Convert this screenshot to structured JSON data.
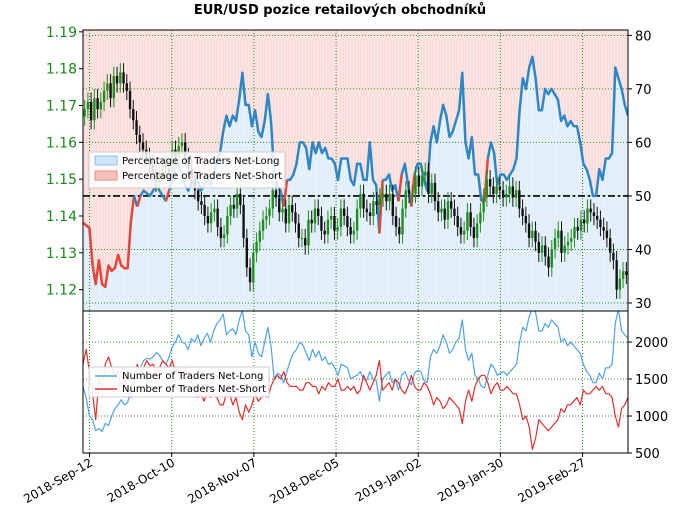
{
  "chart_data": [
    {
      "type": "candlestick+line+area",
      "title": "EUR/USD pozice retailových obchodníků",
      "left_axis": {
        "ticks": [
          "1.12",
          "1.13",
          "1.14",
          "1.15",
          "1.16",
          "1.17",
          "1.18",
          "1.19"
        ],
        "range": [
          1.1142,
          1.1905
        ]
      },
      "right_axis": {
        "ticks": [
          "30",
          "40",
          "50",
          "60",
          "70",
          "80"
        ],
        "range": [
          28.5,
          81
        ]
      },
      "reference_line_pct": 50,
      "legend": [
        "Percentage of Traders Net-Long",
        "Percentage of Traders Net-Short"
      ],
      "net_long_pct": [
        45,
        44.5,
        44,
        37,
        33.5,
        38,
        33.5,
        33,
        37,
        36,
        36.5,
        39,
        37,
        36.5,
        36.5,
        45,
        50,
        48,
        50,
        51,
        50.5,
        50,
        51,
        52,
        51,
        50,
        49,
        51,
        53,
        55,
        56,
        54,
        52,
        51,
        53,
        52,
        53,
        51,
        52,
        53,
        52,
        54,
        57,
        58,
        62,
        65,
        63,
        65,
        64,
        68,
        73,
        67,
        67,
        63,
        66,
        62,
        61,
        64,
        69,
        64,
        54,
        52,
        51,
        48,
        53,
        53,
        54,
        56,
        60,
        60,
        59,
        55,
        60,
        58,
        60,
        58,
        59,
        57,
        57,
        56,
        53,
        57,
        57,
        57,
        53,
        52,
        56,
        56,
        53,
        53,
        60,
        53,
        52,
        43,
        53,
        53,
        54,
        51,
        52,
        49,
        54,
        56,
        52,
        48,
        54,
        56,
        56,
        53,
        51,
        60,
        63,
        60,
        64,
        67,
        65,
        61,
        62,
        64,
        66,
        73,
        60,
        57,
        61,
        54,
        54,
        49,
        49,
        57,
        60,
        58,
        52,
        54,
        54,
        53,
        54,
        55,
        57,
        66,
        72,
        70,
        74,
        76,
        72,
        66,
        66,
        70,
        69,
        70,
        69,
        68,
        64,
        65,
        63,
        64,
        63,
        63,
        60,
        56,
        55,
        53,
        50,
        50,
        55,
        53,
        57,
        57,
        58,
        74,
        72,
        70,
        67,
        65
      ],
      "series_pct_bands": [
        {
          "name": "Percentage of Traders Net-Long",
          "color": "#1f77b4"
        },
        {
          "name": "Percentage of Traders Net-Short",
          "color": "#d62728"
        }
      ],
      "candles_close": [
        1.169,
        1.171,
        1.166,
        1.172,
        1.169,
        1.171,
        1.174,
        1.176,
        1.172,
        1.178,
        1.176,
        1.179,
        1.176,
        1.174,
        1.169,
        1.166,
        1.162,
        1.16,
        1.158,
        1.156,
        1.154,
        1.152,
        1.149,
        1.151,
        1.154,
        1.153,
        1.152,
        1.158,
        1.156,
        1.159,
        1.16,
        1.156,
        1.153,
        1.15,
        1.147,
        1.144,
        1.143,
        1.14,
        1.138,
        1.141,
        1.142,
        1.137,
        1.134,
        1.135,
        1.14,
        1.143,
        1.142,
        1.146,
        1.143,
        1.134,
        1.126,
        1.122,
        1.13,
        1.133,
        1.136,
        1.139,
        1.14,
        1.142,
        1.147,
        1.145,
        1.141,
        1.142,
        1.138,
        1.143,
        1.141,
        1.138,
        1.134,
        1.134,
        1.132,
        1.139,
        1.138,
        1.142,
        1.14,
        1.136,
        1.135,
        1.139,
        1.14,
        1.136,
        1.137,
        1.142,
        1.14,
        1.137,
        1.135,
        1.136,
        1.142,
        1.146,
        1.142,
        1.141,
        1.14,
        1.144,
        1.143,
        1.145,
        1.146,
        1.144,
        1.146,
        1.14,
        1.137,
        1.135,
        1.142,
        1.147,
        1.146,
        1.146,
        1.151,
        1.148,
        1.151,
        1.152,
        1.146,
        1.149,
        1.144,
        1.141,
        1.142,
        1.139,
        1.144,
        1.142,
        1.14,
        1.137,
        1.135,
        1.136,
        1.141,
        1.137,
        1.134,
        1.138,
        1.141,
        1.145,
        1.15,
        1.148,
        1.146,
        1.148,
        1.147,
        1.145,
        1.146,
        1.148,
        1.145,
        1.147,
        1.142,
        1.14,
        1.138,
        1.134,
        1.136,
        1.133,
        1.13,
        1.132,
        1.129,
        1.126,
        1.131,
        1.134,
        1.136,
        1.13,
        1.132,
        1.133,
        1.134,
        1.137,
        1.136,
        1.139,
        1.138,
        1.142,
        1.141,
        1.14,
        1.139,
        1.137,
        1.136,
        1.134,
        1.13,
        1.128,
        1.12,
        1.123,
        1.125,
        1.124
      ]
    },
    {
      "type": "line",
      "right_axis": {
        "ticks": [
          "500",
          "1000",
          "1500",
          "2000"
        ],
        "range": [
          500,
          2420
        ]
      },
      "legend": [
        "Number of Traders Net-Long",
        "Number of Traders Net-Short"
      ],
      "x_ticks": [
        "2018-Sep-12",
        "2018-Oct-10",
        "2018-Nov-07",
        "2018-Dec-05",
        "2019-Jan-02",
        "2019-Jan-30",
        "2019-Feb-27"
      ],
      "series": [
        {
          "name": "Number of Traders Net-Long",
          "color": "#4fa3e6",
          "values": [
            1400,
            1250,
            1000,
            950,
            800,
            830,
            790,
            900,
            870,
            1000,
            1100,
            1150,
            1220,
            1150,
            1180,
            1350,
            1520,
            1600,
            1650,
            1750,
            1780,
            1770,
            1800,
            1860,
            1820,
            1750,
            1700,
            1800,
            1930,
            2000,
            2100,
            2000,
            1980,
            1900,
            2050,
            2000,
            2100,
            1950,
            2050,
            2120,
            2000,
            2150,
            2250,
            2300,
            2380,
            2100,
            2150,
            2180,
            2100,
            2300,
            2430,
            2150,
            2100,
            1800,
            2000,
            1850,
            1800,
            2000,
            2200,
            1950,
            1500,
            1580,
            1550,
            1450,
            1600,
            1750,
            1850,
            1900,
            2000,
            1960,
            1850,
            1750,
            1900,
            1800,
            1880,
            1750,
            1800,
            1700,
            1720,
            1650,
            1550,
            1700,
            1680,
            1650,
            1500,
            1530,
            1550,
            1600,
            1500,
            1480,
            1600,
            1500,
            1480,
            1200,
            1500,
            1550,
            1600,
            1450,
            1500,
            1350,
            1550,
            1600,
            1500,
            1420,
            1580,
            1620,
            1600,
            1480,
            1450,
            1800,
            1900,
            1850,
            1950,
            2100,
            2000,
            1850,
            1900,
            2000,
            2050,
            2300,
            1900,
            1750,
            1850,
            1550,
            1500,
            1400,
            1380,
            1550,
            1700,
            1650,
            1550,
            1580,
            1600,
            1550,
            1600,
            1650,
            1700,
            2000,
            2200,
            2150,
            2350,
            2450,
            2400,
            2150,
            2150,
            2250,
            2200,
            2300,
            2250,
            2200,
            2000,
            2050,
            1950,
            2000,
            1950,
            1900,
            1850,
            1700,
            1600,
            1550,
            1450,
            1450,
            1580,
            1500,
            1650,
            1650,
            1700,
            2250,
            2450,
            2150,
            2100,
            2050
          ]
        },
        {
          "name": "Number of Traders Net-Short",
          "color": "#e03030",
          "values": [
            1700,
            1900,
            1600,
            1300,
            950,
            1500,
            1400,
            1700,
            1800,
            1650,
            1550,
            1600,
            1400,
            1550,
            1300,
            1250,
            1450,
            1700,
            1600,
            1650,
            1750,
            1680,
            1700,
            1600,
            1650,
            1750,
            1700,
            1650,
            1750,
            1600,
            1550,
            1550,
            1650,
            1550,
            1450,
            1400,
            1250,
            1300,
            1200,
            1350,
            1250,
            1300,
            1250,
            1150,
            1150,
            1300,
            1300,
            1150,
            1250,
            1050,
            950,
            1150,
            1050,
            1150,
            1300,
            1200,
            1250,
            1300,
            1250,
            1400,
            1500,
            1550,
            1500,
            1600,
            1450,
            1400,
            1400,
            1400,
            1350,
            1350,
            1450,
            1450,
            1400,
            1400,
            1300,
            1400,
            1350,
            1450,
            1400,
            1400,
            1500,
            1350,
            1350,
            1400,
            1350,
            1400,
            1300,
            1350,
            1550,
            1450,
            1350,
            1450,
            1550,
            1750,
            1350,
            1400,
            1450,
            1350,
            1500,
            1450,
            1350,
            1300,
            1400,
            1550,
            1400,
            1350,
            1350,
            1450,
            1400,
            1300,
            1150,
            1250,
            1200,
            1100,
            1150,
            1250,
            1200,
            1150,
            1100,
            900,
            1200,
            1350,
            1200,
            1400,
            1500,
            1550,
            1550,
            1450,
            1300,
            1400,
            1450,
            1350,
            1350,
            1400,
            1350,
            1300,
            1300,
            1150,
            950,
            1000,
            850,
            550,
            700,
            950,
            900,
            850,
            800,
            850,
            900,
            950,
            1100,
            1050,
            1150,
            1150,
            1200,
            1250,
            1150,
            1350,
            1300,
            1300,
            1350,
            1400,
            1350,
            1400,
            1300,
            1300,
            1250,
            1000,
            850,
            1100,
            1150,
            1250
          ]
        }
      ]
    }
  ]
}
